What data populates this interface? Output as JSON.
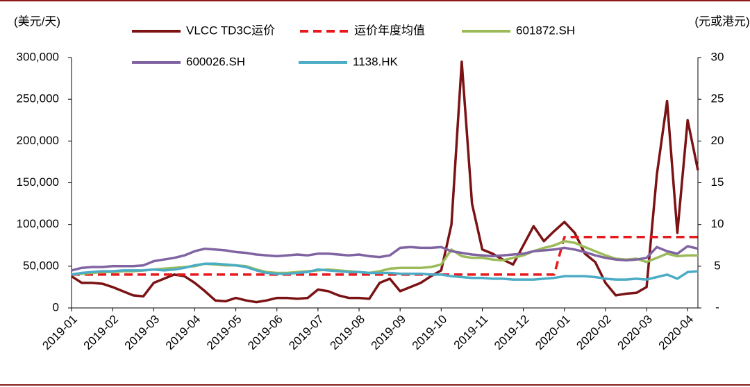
{
  "chart_data": {
    "type": "line",
    "y_label": "(美元/天)",
    "y2_label": "(元或港元)",
    "categories": [
      "2019-01",
      null,
      null,
      null,
      "2019-02",
      null,
      null,
      null,
      "2019-03",
      null,
      null,
      null,
      "2019-04",
      null,
      null,
      null,
      "2019-05",
      null,
      null,
      null,
      "2019-06",
      null,
      null,
      null,
      "2019-07",
      null,
      null,
      null,
      "2019-08",
      null,
      null,
      null,
      "2019-09",
      null,
      null,
      null,
      "2019-10",
      null,
      null,
      null,
      "2019-11",
      null,
      null,
      null,
      "2019-12",
      null,
      null,
      null,
      "2020-01",
      null,
      null,
      null,
      "2020-02",
      null,
      null,
      null,
      "2020-03",
      null,
      null,
      null,
      "2020-04",
      null
    ],
    "ylim": [
      0,
      300000
    ],
    "yticks": [
      0,
      {
        "value": 50000,
        "label": "50,000"
      },
      {
        "value": 100000,
        "label": "100,000"
      },
      {
        "value": 150000,
        "label": "150,000"
      },
      {
        "value": 200000,
        "label": "200,000"
      },
      {
        "value": 250000,
        "label": "250,000"
      },
      {
        "value": 300000,
        "label": "300,000"
      }
    ],
    "y2lim": [
      0,
      30
    ],
    "y2ticks": [
      {
        "value": 0,
        "label": "-"
      },
      5,
      10,
      15,
      20,
      25,
      30
    ],
    "series": [
      {
        "name": "VLCC TD3C运价",
        "color": "#7b1214",
        "values": [
          38000,
          30000,
          30000,
          29000,
          25000,
          20000,
          15000,
          14000,
          30000,
          35000,
          40000,
          38000,
          30000,
          20000,
          9000,
          8000,
          12000,
          9000,
          7000,
          9000,
          12000,
          12000,
          11000,
          12000,
          22000,
          20000,
          15000,
          12000,
          12000,
          11000,
          30000,
          35000,
          20000,
          25000,
          30000,
          38000,
          45000,
          100000,
          295000,
          125000,
          70000,
          65000,
          58000,
          52000,
          75000,
          98000,
          80000,
          92000,
          103000,
          90000,
          65000,
          55000,
          30000,
          15000,
          17000,
          18000,
          25000,
          160000,
          248000,
          90000,
          225000,
          165000
        ]
      },
      {
        "name": "运价年度均值",
        "color": "#e8191c",
        "style": "dashed",
        "values": [
          40000,
          40000,
          40000,
          40000,
          40000,
          40000,
          40000,
          40000,
          40000,
          40000,
          40000,
          40000,
          40000,
          40000,
          40000,
          40000,
          40000,
          40000,
          40000,
          40000,
          40000,
          40000,
          40000,
          40000,
          40000,
          40000,
          40000,
          40000,
          40000,
          40000,
          40000,
          40000,
          40000,
          40000,
          40000,
          40000,
          40000,
          40000,
          40000,
          40000,
          40000,
          40000,
          40000,
          40000,
          40000,
          40000,
          40000,
          40000,
          85000,
          85000,
          85000,
          85000,
          85000,
          85000,
          85000,
          85000,
          85000,
          85000,
          85000,
          85000,
          85000,
          85000
        ]
      },
      {
        "name": "601872.SH",
        "color": "#9bbb59",
        "axis": "y2",
        "values": [
          4.0,
          4.1,
          4.2,
          4.3,
          4.3,
          4.4,
          4.4,
          4.5,
          4.6,
          4.7,
          4.8,
          4.9,
          5.0,
          5.3,
          5.2,
          5.1,
          5.1,
          5.0,
          4.6,
          4.3,
          4.2,
          4.2,
          4.3,
          4.4,
          4.5,
          4.6,
          4.5,
          4.4,
          4.3,
          4.2,
          4.4,
          4.7,
          4.8,
          4.8,
          4.8,
          4.9,
          5.2,
          7.0,
          6.2,
          6.0,
          6.0,
          5.8,
          5.7,
          6.0,
          6.3,
          6.8,
          7.2,
          7.5,
          8.0,
          7.8,
          7.3,
          6.8,
          6.3,
          5.9,
          5.8,
          5.9,
          5.5,
          6.0,
          6.5,
          6.2,
          6.3,
          6.3
        ]
      },
      {
        "name": "600026.SH",
        "color": "#8064a2",
        "axis": "y2",
        "values": [
          4.5,
          4.8,
          4.9,
          4.9,
          5.0,
          5.0,
          5.0,
          5.1,
          5.6,
          5.8,
          6.0,
          6.3,
          6.8,
          7.1,
          7.0,
          6.9,
          6.7,
          6.6,
          6.4,
          6.3,
          6.2,
          6.3,
          6.4,
          6.3,
          6.5,
          6.5,
          6.4,
          6.3,
          6.4,
          6.2,
          6.1,
          6.3,
          7.2,
          7.3,
          7.2,
          7.2,
          7.3,
          6.8,
          6.6,
          6.4,
          6.3,
          6.2,
          6.3,
          6.4,
          6.5,
          6.8,
          6.9,
          7.0,
          7.2,
          7.0,
          6.7,
          6.3,
          6.0,
          5.8,
          5.7,
          5.8,
          6.0,
          7.3,
          6.8,
          6.5,
          7.4,
          7.1
        ]
      },
      {
        "name": "1138.HK",
        "color": "#4bacc6",
        "axis": "y2",
        "values": [
          4.0,
          4.2,
          4.3,
          4.4,
          4.4,
          4.5,
          4.5,
          4.5,
          4.6,
          4.5,
          4.6,
          4.8,
          5.1,
          5.3,
          5.3,
          5.2,
          5.1,
          4.9,
          4.5,
          4.2,
          4.1,
          4.1,
          4.2,
          4.3,
          4.6,
          4.5,
          4.4,
          4.3,
          4.3,
          4.2,
          4.2,
          4.2,
          4.1,
          4.1,
          4.1,
          4.0,
          4.0,
          3.8,
          3.7,
          3.6,
          3.6,
          3.5,
          3.5,
          3.4,
          3.4,
          3.4,
          3.5,
          3.6,
          3.8,
          3.8,
          3.8,
          3.7,
          3.5,
          3.4,
          3.4,
          3.5,
          3.4,
          3.7,
          4.0,
          3.5,
          4.3,
          4.4
        ]
      }
    ]
  }
}
